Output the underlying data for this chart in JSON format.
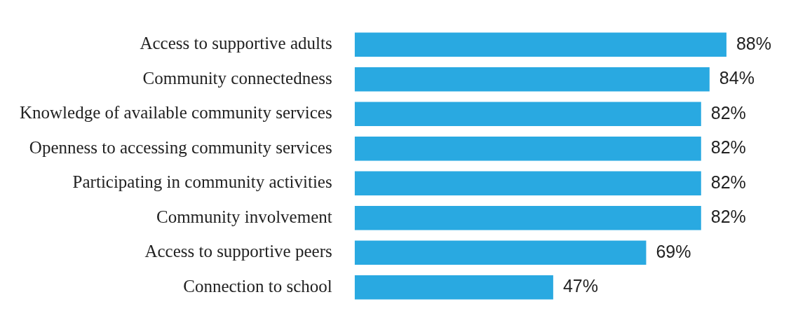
{
  "chart_data": {
    "type": "bar",
    "orientation": "horizontal",
    "categories": [
      "Access to supportive adults",
      "Community connectedness",
      "Knowledge of available community services",
      "Openness to accessing community services",
      "Participating in community activities",
      "Community involvement",
      "Access to supportive peers",
      "Connection to school"
    ],
    "values": [
      88,
      84,
      82,
      82,
      82,
      82,
      69,
      47
    ],
    "value_labels": [
      "88%",
      "84%",
      "82%",
      "82%",
      "82%",
      "82%",
      "69%",
      "47%"
    ],
    "color": "#29a9e1",
    "tick_labels": "y"
  }
}
